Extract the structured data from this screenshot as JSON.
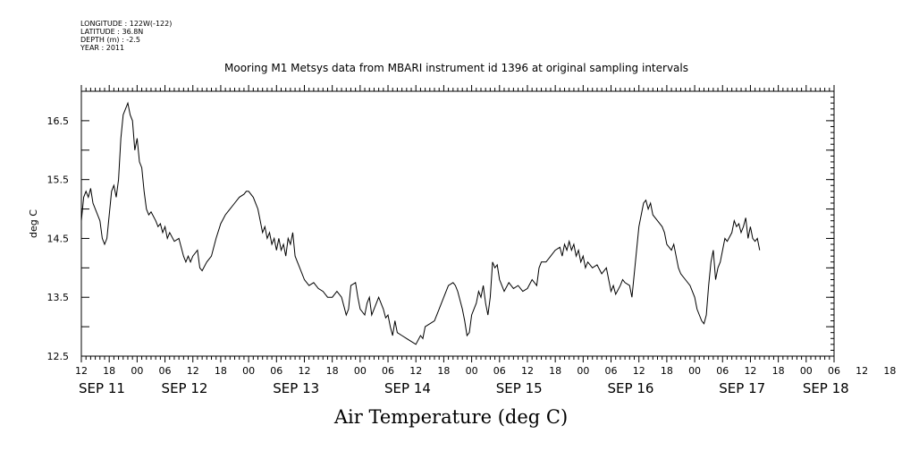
{
  "header": {
    "longitude": "LONGITUDE : 122W(-122)",
    "latitude": "LATITUDE : 36.8N",
    "depth": "DEPTH (m) : -2.5",
    "year": "YEAR : 2011"
  },
  "chart_data": {
    "type": "line",
    "title": "Mooring M1 Metsys data from MBARI instrument id 1396 at original sampling intervals",
    "xlabel": "Air Temperature (deg C)",
    "ylabel": "deg C",
    "ylim": [
      12.5,
      17.0
    ],
    "xlim_hours": [
      0,
      162
    ],
    "y_ticks": [
      12.5,
      13.5,
      14.5,
      15.5,
      16.5
    ],
    "y_tick_labels": [
      "12.5",
      "13.5",
      "14.5",
      "15.5",
      "16.5"
    ],
    "hour_tick_labels": [
      "12",
      "18",
      "00",
      "06",
      "12",
      "18",
      "00",
      "06",
      "12",
      "18",
      "00",
      "06",
      "12",
      "18",
      "00",
      "06",
      "12",
      "18",
      "00",
      "06",
      "12",
      "18",
      "00",
      "06",
      "12",
      "18",
      "00",
      "06",
      "12",
      "18",
      "00"
    ],
    "date_labels": [
      "SEP 11",
      "SEP 12",
      "SEP 13",
      "SEP 14",
      "SEP 15",
      "SEP 16",
      "SEP 17",
      "SEP 18"
    ],
    "date_label_hours": [
      0,
      18,
      42,
      66,
      90,
      114,
      138,
      156
    ],
    "x_unit": "hours since SEP 11 12:00",
    "series": [
      {
        "name": "Air Temperature",
        "points": [
          [
            0,
            14.8
          ],
          [
            0.5,
            15.2
          ],
          [
            1,
            15.3
          ],
          [
            1.5,
            15.2
          ],
          [
            2,
            15.35
          ],
          [
            2.5,
            15.1
          ],
          [
            3,
            15.0
          ],
          [
            4,
            14.8
          ],
          [
            4.5,
            14.5
          ],
          [
            5,
            14.4
          ],
          [
            5.5,
            14.5
          ],
          [
            6,
            14.9
          ],
          [
            6.5,
            15.3
          ],
          [
            7,
            15.4
          ],
          [
            7.5,
            15.2
          ],
          [
            8,
            15.5
          ],
          [
            8.5,
            16.2
          ],
          [
            9,
            16.6
          ],
          [
            9.5,
            16.7
          ],
          [
            10,
            16.8
          ],
          [
            10.5,
            16.6
          ],
          [
            11,
            16.5
          ],
          [
            11.5,
            16.0
          ],
          [
            12,
            16.2
          ],
          [
            12.5,
            15.8
          ],
          [
            13,
            15.7
          ],
          [
            13.5,
            15.3
          ],
          [
            14,
            15.0
          ],
          [
            14.5,
            14.9
          ],
          [
            15,
            14.95
          ],
          [
            16,
            14.8
          ],
          [
            16.5,
            14.7
          ],
          [
            17,
            14.75
          ],
          [
            17.5,
            14.6
          ],
          [
            18,
            14.7
          ],
          [
            18.5,
            14.5
          ],
          [
            19,
            14.6
          ],
          [
            20,
            14.45
          ],
          [
            21,
            14.5
          ],
          [
            22,
            14.2
          ],
          [
            22.5,
            14.1
          ],
          [
            23,
            14.2
          ],
          [
            23.5,
            14.1
          ],
          [
            24,
            14.2
          ],
          [
            25,
            14.3
          ],
          [
            25.5,
            14.0
          ],
          [
            26,
            13.95
          ],
          [
            27,
            14.1
          ],
          [
            28,
            14.2
          ],
          [
            29,
            14.5
          ],
          [
            30,
            14.75
          ],
          [
            31,
            14.9
          ],
          [
            32,
            15.0
          ],
          [
            33,
            15.1
          ],
          [
            34,
            15.2
          ],
          [
            35,
            15.25
          ],
          [
            35.5,
            15.3
          ],
          [
            36,
            15.3
          ],
          [
            37,
            15.2
          ],
          [
            38,
            15.0
          ],
          [
            38.5,
            14.8
          ],
          [
            39,
            14.6
          ],
          [
            39.5,
            14.7
          ],
          [
            40,
            14.5
          ],
          [
            40.5,
            14.6
          ],
          [
            41,
            14.4
          ],
          [
            41.5,
            14.5
          ],
          [
            42,
            14.3
          ],
          [
            42.5,
            14.5
          ],
          [
            43,
            14.3
          ],
          [
            43.5,
            14.4
          ],
          [
            44,
            14.2
          ],
          [
            44.5,
            14.5
          ],
          [
            45,
            14.4
          ],
          [
            45.5,
            14.6
          ],
          [
            46,
            14.2
          ],
          [
            46.5,
            14.1
          ],
          [
            47,
            14.0
          ],
          [
            48,
            13.8
          ],
          [
            49,
            13.7
          ],
          [
            50,
            13.75
          ],
          [
            51,
            13.65
          ],
          [
            52,
            13.6
          ],
          [
            53,
            13.5
          ],
          [
            54,
            13.5
          ],
          [
            55,
            13.6
          ],
          [
            56,
            13.5
          ],
          [
            57,
            13.2
          ],
          [
            57.5,
            13.3
          ],
          [
            58,
            13.7
          ],
          [
            59,
            13.75
          ],
          [
            59.5,
            13.5
          ],
          [
            60,
            13.3
          ],
          [
            61,
            13.2
          ],
          [
            61.5,
            13.4
          ],
          [
            62,
            13.5
          ],
          [
            62.5,
            13.2
          ],
          [
            63,
            13.3
          ],
          [
            64,
            13.5
          ],
          [
            65,
            13.3
          ],
          [
            65.5,
            13.15
          ],
          [
            66,
            13.2
          ],
          [
            66.5,
            13.0
          ],
          [
            67,
            12.85
          ],
          [
            67.5,
            13.1
          ],
          [
            68,
            12.9
          ],
          [
            69,
            12.85
          ],
          [
            70,
            12.8
          ],
          [
            71,
            12.75
          ],
          [
            72,
            12.7
          ],
          [
            73,
            12.85
          ],
          [
            73.5,
            12.8
          ],
          [
            74,
            13.0
          ],
          [
            75,
            13.05
          ],
          [
            76,
            13.1
          ],
          [
            77,
            13.3
          ],
          [
            78,
            13.5
          ],
          [
            79,
            13.7
          ],
          [
            80,
            13.75
          ],
          [
            80.5,
            13.7
          ],
          [
            81,
            13.6
          ],
          [
            82,
            13.3
          ],
          [
            82.5,
            13.1
          ],
          [
            83,
            12.85
          ],
          [
            83.5,
            12.9
          ],
          [
            84,
            13.2
          ],
          [
            85,
            13.4
          ],
          [
            85.5,
            13.6
          ],
          [
            86,
            13.5
          ],
          [
            86.5,
            13.7
          ],
          [
            87,
            13.4
          ],
          [
            87.5,
            13.2
          ],
          [
            88,
            13.5
          ],
          [
            88.5,
            14.1
          ],
          [
            89,
            14.0
          ],
          [
            89.5,
            14.05
          ],
          [
            90,
            13.8
          ],
          [
            90.5,
            13.7
          ],
          [
            91,
            13.6
          ],
          [
            92,
            13.75
          ],
          [
            93,
            13.65
          ],
          [
            94,
            13.7
          ],
          [
            95,
            13.6
          ],
          [
            96,
            13.65
          ],
          [
            97,
            13.8
          ],
          [
            98,
            13.7
          ],
          [
            98.5,
            14.0
          ],
          [
            99,
            14.1
          ],
          [
            100,
            14.1
          ],
          [
            101,
            14.2
          ],
          [
            102,
            14.3
          ],
          [
            103,
            14.35
          ],
          [
            103.5,
            14.2
          ],
          [
            104,
            14.4
          ],
          [
            104.5,
            14.3
          ],
          [
            105,
            14.45
          ],
          [
            105.5,
            14.3
          ],
          [
            106,
            14.4
          ],
          [
            106.5,
            14.2
          ],
          [
            107,
            14.3
          ],
          [
            107.5,
            14.1
          ],
          [
            108,
            14.2
          ],
          [
            108.5,
            14.0
          ],
          [
            109,
            14.1
          ],
          [
            110,
            14.0
          ],
          [
            111,
            14.05
          ],
          [
            112,
            13.9
          ],
          [
            113,
            14.0
          ],
          [
            113.5,
            13.8
          ],
          [
            114,
            13.6
          ],
          [
            114.5,
            13.7
          ],
          [
            115,
            13.55
          ],
          [
            116,
            13.7
          ],
          [
            116.5,
            13.8
          ],
          [
            117,
            13.75
          ],
          [
            118,
            13.7
          ],
          [
            118.5,
            13.5
          ],
          [
            119,
            13.9
          ],
          [
            119.5,
            14.3
          ],
          [
            120,
            14.7
          ],
          [
            120.5,
            14.9
          ],
          [
            121,
            15.1
          ],
          [
            121.5,
            15.15
          ],
          [
            122,
            15.0
          ],
          [
            122.5,
            15.1
          ],
          [
            123,
            14.9
          ],
          [
            124,
            14.8
          ],
          [
            125,
            14.7
          ],
          [
            125.5,
            14.6
          ],
          [
            126,
            14.4
          ],
          [
            127,
            14.3
          ],
          [
            127.5,
            14.4
          ],
          [
            128,
            14.2
          ],
          [
            128.5,
            14.0
          ],
          [
            129,
            13.9
          ],
          [
            130,
            13.8
          ],
          [
            131,
            13.7
          ],
          [
            132,
            13.5
          ],
          [
            132.5,
            13.3
          ],
          [
            133,
            13.2
          ],
          [
            133.5,
            13.1
          ],
          [
            134,
            13.05
          ],
          [
            134.5,
            13.2
          ],
          [
            135,
            13.7
          ],
          [
            135.5,
            14.1
          ],
          [
            136,
            14.3
          ],
          [
            136.5,
            13.8
          ],
          [
            137,
            14.0
          ],
          [
            137.5,
            14.1
          ],
          [
            138,
            14.3
          ],
          [
            138.5,
            14.5
          ],
          [
            139,
            14.45
          ],
          [
            140,
            14.6
          ],
          [
            140.5,
            14.8
          ],
          [
            141,
            14.7
          ],
          [
            141.5,
            14.75
          ],
          [
            142,
            14.6
          ],
          [
            142.5,
            14.7
          ],
          [
            143,
            14.85
          ],
          [
            143.5,
            14.5
          ],
          [
            144,
            14.7
          ],
          [
            144.5,
            14.5
          ],
          [
            145,
            14.45
          ],
          [
            145.5,
            14.5
          ],
          [
            146,
            14.3
          ]
        ]
      }
    ]
  }
}
